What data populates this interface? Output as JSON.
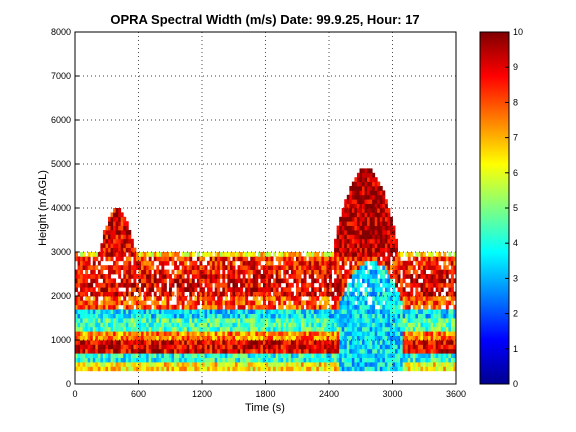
{
  "chart_data": {
    "type": "heatmap",
    "title": "OPRA Spectral Width (m/s)  Date: 99.9.25, Hour: 17",
    "xlabel": "Time (s)",
    "ylabel": "Height (m AGL)",
    "xlim": [
      0,
      3600
    ],
    "ylim": [
      0,
      8000
    ],
    "x_ticks": [
      "0",
      "600",
      "1200",
      "1800",
      "2400",
      "3000",
      "3600"
    ],
    "y_ticks": [
      "0",
      "1000",
      "2000",
      "3000",
      "4000",
      "5000",
      "6000",
      "7000",
      "8000"
    ],
    "grid": true,
    "grid_style": "dotted",
    "colormap": "jet",
    "colorbar": {
      "range": [
        0,
        10
      ],
      "ticks": [
        "0",
        "1",
        "2",
        "3",
        "4",
        "5",
        "6",
        "7",
        "8",
        "9",
        "10"
      ],
      "placement": "right"
    },
    "layers_m": [
      {
        "height_range": [
          300,
          500
        ],
        "value": 6.5
      },
      {
        "height_range": [
          500,
          700
        ],
        "value": 4.0
      },
      {
        "height_range": [
          700,
          1000
        ],
        "value": 9.0
      },
      {
        "height_range": [
          1000,
          1200
        ],
        "value": 7.5
      },
      {
        "height_range": [
          1200,
          1500
        ],
        "value": 4.5
      },
      {
        "height_range": [
          1500,
          1700
        ],
        "value": 3.5
      },
      {
        "height_range": [
          1700,
          2000
        ],
        "value": 8.0
      },
      {
        "height_range": [
          2000,
          2500
        ],
        "value": 9.0
      },
      {
        "height_range": [
          2500,
          2900
        ],
        "value": 8.5
      },
      {
        "height_range": [
          2900,
          3050
        ],
        "value": 6.5
      }
    ],
    "plumes": [
      {
        "time_range": [
          200,
          600
        ],
        "top_height": 4000,
        "value": 9.0
      },
      {
        "time_range": [
          2450,
          3050
        ],
        "top_height": 4900,
        "value": 9.5
      },
      {
        "time_range": [
          2500,
          3100
        ],
        "top_height": 2800,
        "value": 3.5
      }
    ]
  }
}
